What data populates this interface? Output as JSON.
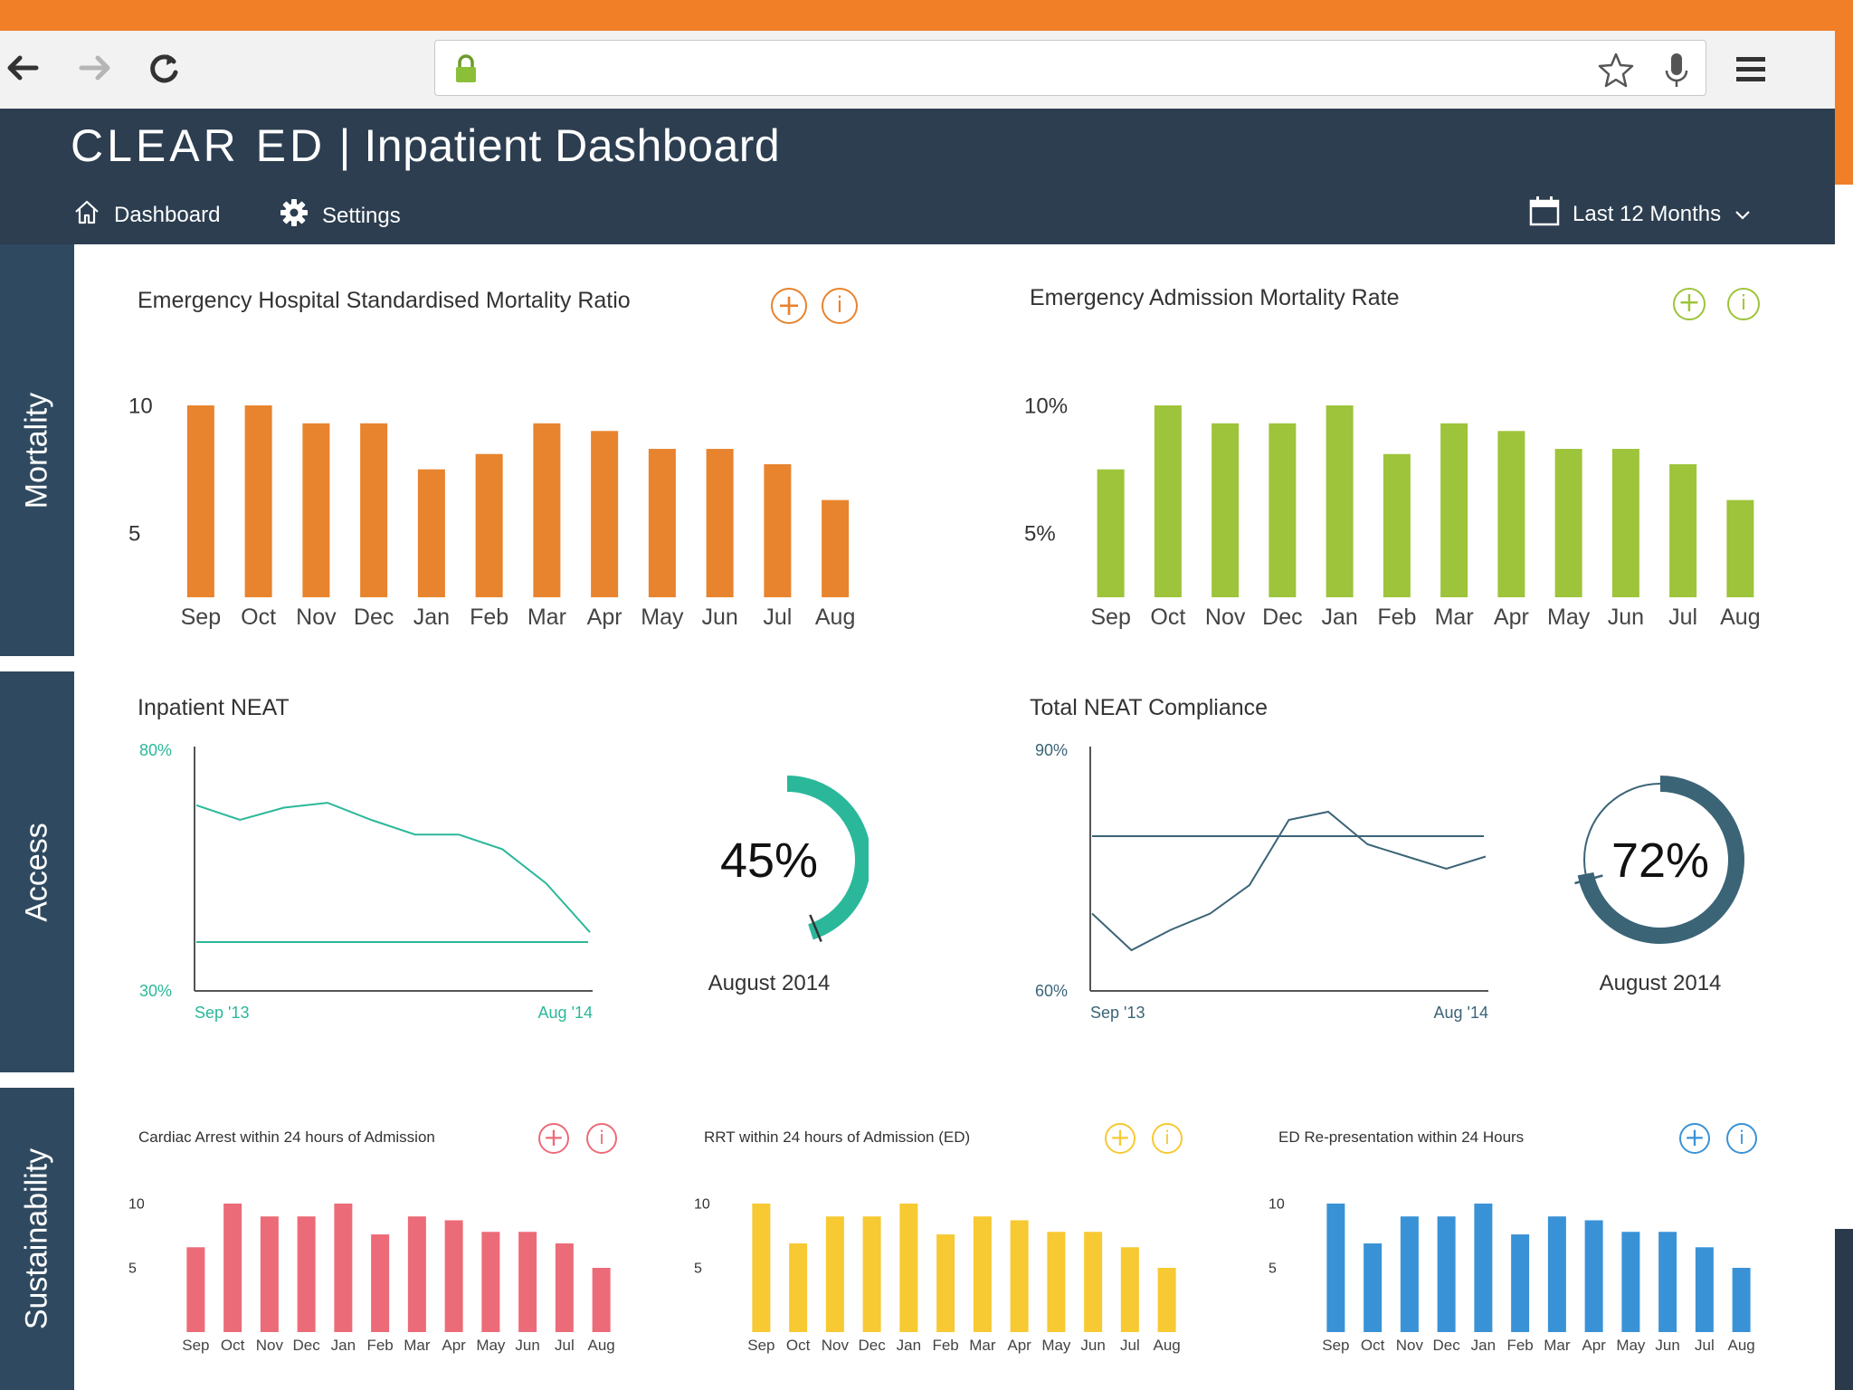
{
  "browser": {
    "back_icon": "back-arrow-icon",
    "forward_icon": "forward-arrow-icon",
    "reload_icon": "reload-icon",
    "lock_icon": "lock-icon",
    "bookmark_icon": "star-icon",
    "mic_icon": "microphone-icon",
    "menu_icon": "hamburger-menu-icon"
  },
  "header": {
    "brand": "CLEAR ED",
    "separator": "|",
    "title": "Inpatient Dashboard",
    "nav": [
      {
        "label": "Dashboard",
        "icon": "home-icon"
      },
      {
        "label": "Settings",
        "icon": "gear-icon"
      }
    ],
    "date_range": "Last 12 Months"
  },
  "sidebar": [
    "Mortality",
    "Access",
    "Sustainability"
  ],
  "colors": {
    "orange": "#e8832e",
    "green": "#9dc43a",
    "teal": "#2bb89a",
    "slate": "#3b6477",
    "red": "#ec6b78",
    "yellow": "#f7c932",
    "blue": "#3a92d6",
    "header_bg": "#2c3e50"
  },
  "chart_data": [
    {
      "id": "hsmr",
      "type": "bar",
      "title": "Emergency Hospital Standardised Mortality Ratio",
      "categories": [
        "Sep",
        "Oct",
        "Nov",
        "Dec",
        "Jan",
        "Feb",
        "Mar",
        "Apr",
        "May",
        "Jun",
        "Jul",
        "Aug"
      ],
      "values": [
        10,
        10,
        9.3,
        9.3,
        7.5,
        8.1,
        9.3,
        9.0,
        8.3,
        8.3,
        7.7,
        6.3
      ],
      "yticks": [
        "10",
        "5"
      ],
      "ylim": [
        2.5,
        10
      ]
    },
    {
      "id": "admission-mortality",
      "type": "bar",
      "title": "Emergency Admission Mortality Rate",
      "categories": [
        "Sep",
        "Oct",
        "Nov",
        "Dec",
        "Jan",
        "Feb",
        "Mar",
        "Apr",
        "May",
        "Jun",
        "Jul",
        "Aug"
      ],
      "values": [
        7.5,
        10,
        9.3,
        9.3,
        10,
        8.1,
        9.3,
        9.0,
        8.3,
        8.3,
        7.7,
        6.3
      ],
      "yticks": [
        "10%",
        "5%"
      ],
      "ylim": [
        2.5,
        10
      ]
    },
    {
      "id": "inpatient-neat",
      "type": "line",
      "title": "Inpatient NEAT",
      "y_top_label": "80%",
      "y_bottom_label": "30%",
      "x_start_label": "Sep '13",
      "x_end_label": "Aug '14",
      "ylim": [
        30,
        80
      ],
      "values": [
        68,
        65,
        67.5,
        68.5,
        65,
        62,
        62,
        59,
        52,
        42
      ],
      "target": 40,
      "gauge_value": 45,
      "gauge_label": "45%",
      "gauge_caption": "August 2014"
    },
    {
      "id": "total-neat-compliance",
      "type": "line",
      "title": "Total NEAT Compliance",
      "y_top_label": "90%",
      "y_bottom_label": "60%",
      "x_start_label": "Sep '13",
      "x_end_label": "Aug '14",
      "ylim": [
        60,
        90
      ],
      "values": [
        69.5,
        65,
        67.5,
        69.5,
        73,
        81,
        82,
        78,
        76.5,
        75,
        76.5
      ],
      "target": 79,
      "gauge_value": 72,
      "gauge_label": "72%",
      "gauge_caption": "August 2014"
    },
    {
      "id": "cardiac-arrest",
      "type": "bar",
      "title": "Cardiac Arrest within 24 hours of Admission",
      "categories": [
        "Sep",
        "Oct",
        "Nov",
        "Dec",
        "Jan",
        "Feb",
        "Mar",
        "Apr",
        "May",
        "Jun",
        "Jul",
        "Aug"
      ],
      "values": [
        6.6,
        10,
        9.0,
        9.0,
        10,
        7.6,
        9.0,
        8.7,
        7.8,
        7.8,
        6.9,
        5.0
      ],
      "yticks": [
        "10",
        "5"
      ],
      "ylim": [
        0,
        10
      ]
    },
    {
      "id": "rrt",
      "type": "bar",
      "title": "RRT within 24 hours of Admission (ED)",
      "categories": [
        "Sep",
        "Oct",
        "Nov",
        "Dec",
        "Jan",
        "Feb",
        "Mar",
        "Apr",
        "May",
        "Jun",
        "Jul",
        "Aug"
      ],
      "values": [
        10,
        6.9,
        9.0,
        9.0,
        10,
        7.6,
        9.0,
        8.7,
        7.8,
        7.8,
        6.6,
        5.0
      ],
      "yticks": [
        "10",
        "5"
      ],
      "ylim": [
        0,
        10
      ]
    },
    {
      "id": "ed-representation",
      "type": "bar",
      "title": "ED Re-presentation within 24 Hours",
      "categories": [
        "Sep",
        "Oct",
        "Nov",
        "Dec",
        "Jan",
        "Feb",
        "Mar",
        "Apr",
        "May",
        "Jun",
        "Jul",
        "Aug"
      ],
      "values": [
        10,
        6.9,
        9.0,
        9.0,
        10,
        7.6,
        9.0,
        8.7,
        7.8,
        7.8,
        6.6,
        5.0
      ],
      "yticks": [
        "10",
        "5"
      ],
      "ylim": [
        0,
        10
      ]
    }
  ]
}
